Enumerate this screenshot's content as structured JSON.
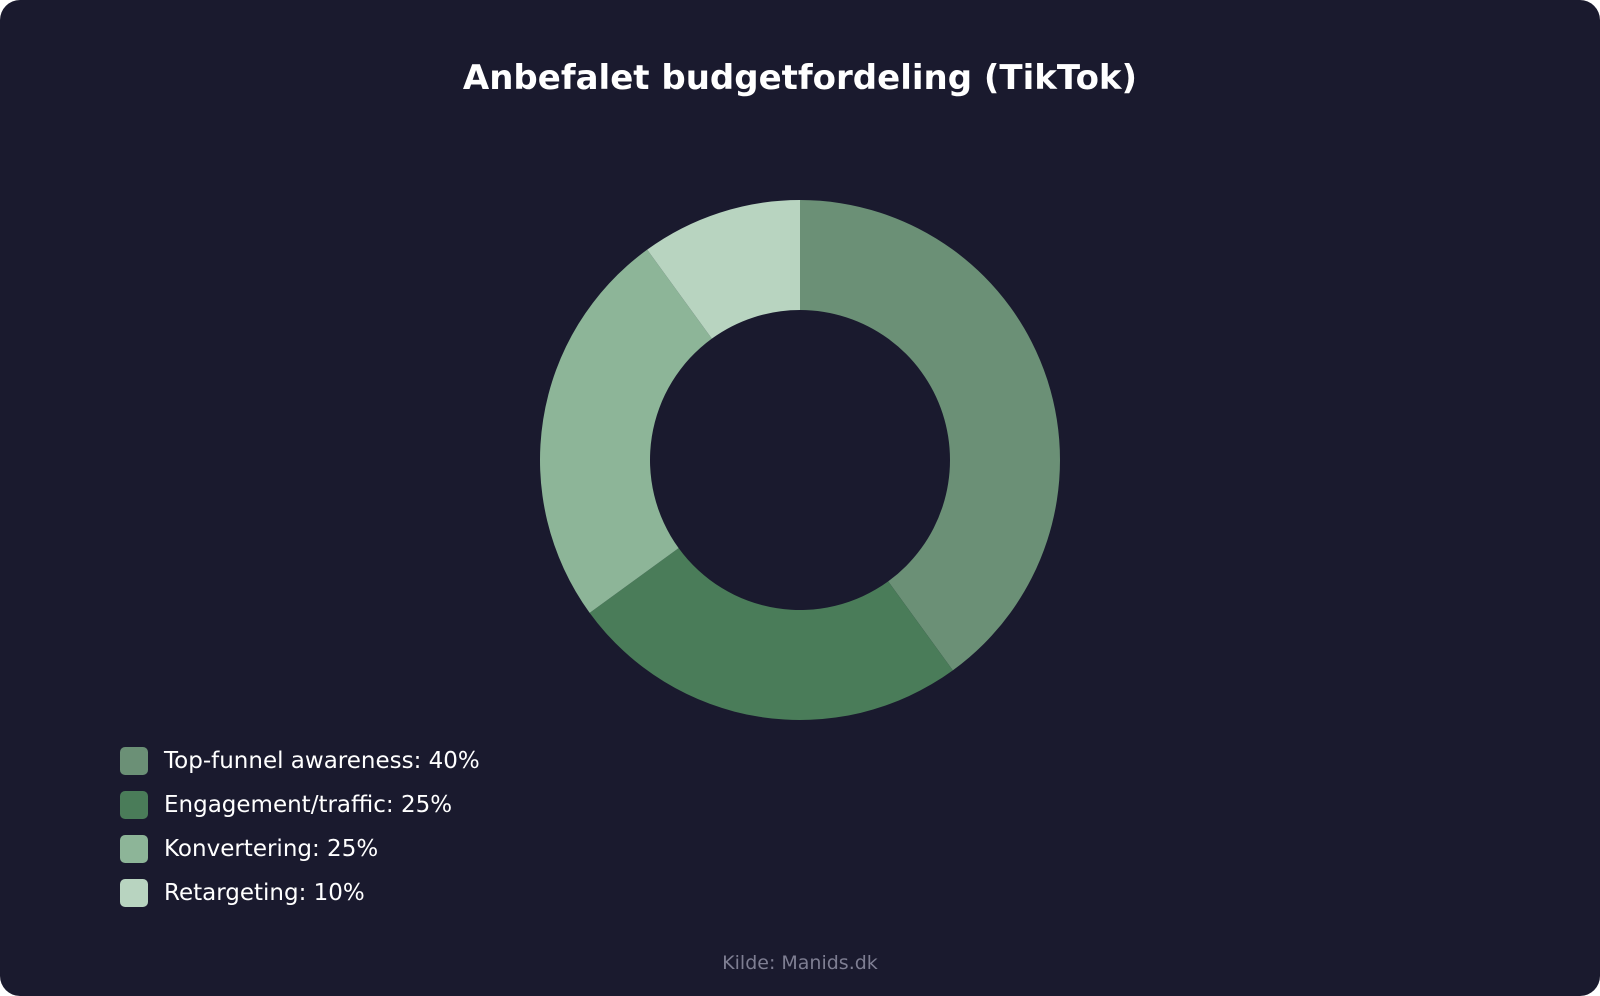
{
  "source_text": "Kilde: Manids.dk",
  "chart_data": {
    "type": "pie",
    "variant": "donut",
    "title": "Anbefalet budgetfordeling (TikTok)",
    "slices": [
      {
        "label": "Top-funnel awareness: 40%",
        "name": "Top-funnel awareness",
        "value": 40,
        "color": "#6b9076"
      },
      {
        "label": "Engagement/traffic: 25%",
        "name": "Engagement/traffic",
        "value": 25,
        "color": "#4a7c59"
      },
      {
        "label": "Konvertering: 25%",
        "name": "Konvertering",
        "value": 25,
        "color": "#8db598"
      },
      {
        "label": "Retargeting: 10%",
        "name": "Retargeting",
        "value": 10,
        "color": "#b8d4c0"
      }
    ],
    "legend_position": "bottom-left",
    "start": "top",
    "direction": "clockwise"
  }
}
